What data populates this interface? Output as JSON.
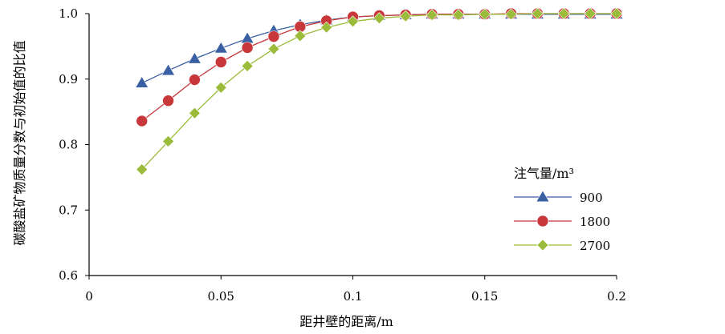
{
  "chart_data": {
    "type": "line",
    "title": "",
    "xlabel": "距井壁的距离/m",
    "ylabel": "碳酸盐矿物质量分数与初始值的比值",
    "xlim": [
      0,
      0.2
    ],
    "ylim": [
      0.6,
      1.0
    ],
    "x_ticks": [
      "0",
      "0.05",
      "0.1",
      "0.15",
      "0.2"
    ],
    "x_tick_values": [
      0,
      0.05,
      0.1,
      0.15,
      0.2
    ],
    "y_ticks": [
      "0.6",
      "0.7",
      "0.8",
      "0.9",
      "1.0"
    ],
    "y_tick_values": [
      0.6,
      0.7,
      0.8,
      0.9,
      1.0
    ],
    "grid": false,
    "legend": {
      "title": "注气量/m³",
      "placement": "right"
    },
    "x": [
      0.02,
      0.03,
      0.04,
      0.05,
      0.06,
      0.07,
      0.08,
      0.09,
      0.1,
      0.11,
      0.12,
      0.13,
      0.14,
      0.15,
      0.16,
      0.17,
      0.18,
      0.19,
      0.2
    ],
    "series": [
      {
        "name": "900",
        "marker": "triangle",
        "color": "#3a5fa3",
        "values": [
          0.894,
          0.913,
          0.931,
          0.947,
          0.962,
          0.974,
          0.983,
          0.99,
          0.995,
          0.997,
          0.998,
          0.999,
          0.999,
          0.999,
          0.999,
          0.999,
          0.999,
          0.999,
          0.999
        ]
      },
      {
        "name": "1800",
        "marker": "circle",
        "color": "#c8383a",
        "values": [
          0.836,
          0.867,
          0.899,
          0.926,
          0.948,
          0.965,
          0.98,
          0.989,
          0.995,
          0.997,
          0.998,
          0.999,
          0.999,
          0.999,
          1.0,
          1.0,
          1.0,
          1.0,
          1.0
        ]
      },
      {
        "name": "2700",
        "marker": "diamond",
        "color": "#9bbb3a",
        "values": [
          0.762,
          0.805,
          0.848,
          0.887,
          0.92,
          0.946,
          0.966,
          0.979,
          0.988,
          0.993,
          0.996,
          0.998,
          0.998,
          0.999,
          0.999,
          1.0,
          1.0,
          1.0,
          1.0
        ]
      }
    ]
  }
}
